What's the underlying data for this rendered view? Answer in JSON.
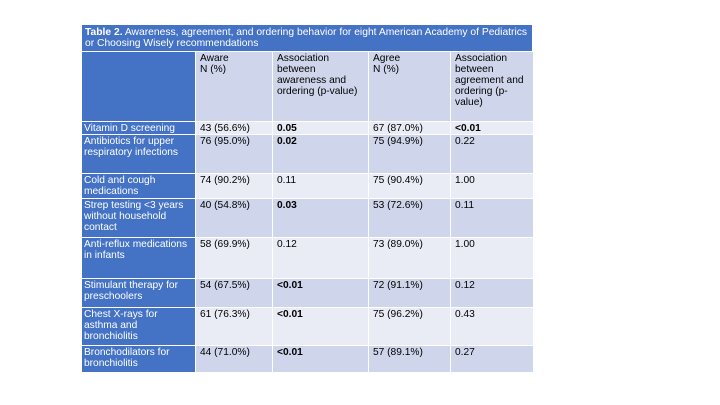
{
  "title": {
    "prefix": "Table 2.",
    "text": " Awareness, agreement, and ordering behavior for eight American Academy of Pediatrics or Choosing Wisely recommendations"
  },
  "headers": [
    "",
    "Aware\nN (%)",
    "Association between awareness and ordering (p-value)",
    "Agree\nN (%)",
    "Association between agreement and ordering (p-value)"
  ],
  "rows": [
    {
      "label": "Vitamin D screening",
      "aware": "43 (56.6%)",
      "p_aware": "0.05",
      "p_aware_bold": true,
      "agree": "67 (87.0%)",
      "p_agree": "<0.01",
      "p_agree_bold": true
    },
    {
      "label": "Antibiotics for upper respiratory infections",
      "aware": "76 (95.0%)",
      "p_aware": "0.02",
      "p_aware_bold": true,
      "agree": "75 (94.9%)",
      "p_agree": "0.22",
      "p_agree_bold": false
    },
    {
      "label": "Cold and cough medications",
      "aware": "74 (90.2%)",
      "p_aware": "0.11",
      "p_aware_bold": false,
      "agree": "75 (90.4%)",
      "p_agree": "1.00",
      "p_agree_bold": false
    },
    {
      "label": "Strep testing <3 years without household contact",
      "aware": "40 (54.8%)",
      "p_aware": "0.03",
      "p_aware_bold": true,
      "agree": "53 (72.6%)",
      "p_agree": "0.11",
      "p_agree_bold": false
    },
    {
      "label": "Anti-reflux medications in infants",
      "aware": "58 (69.9%)",
      "p_aware": "0.12",
      "p_aware_bold": false,
      "agree": "73 (89.0%)",
      "p_agree": "1.00",
      "p_agree_bold": false
    },
    {
      "label": "Stimulant therapy for preschoolers",
      "aware": "54 (67.5%)",
      "p_aware": "<0.01",
      "p_aware_bold": true,
      "agree": "72 (91.1%)",
      "p_agree": "0.12",
      "p_agree_bold": false
    },
    {
      "label": "Chest X-rays for asthma and bronchiolitis",
      "aware": "61 (76.3%)",
      "p_aware": "<0.01",
      "p_aware_bold": true,
      "agree": "75 (96.2%)",
      "p_agree": "0.43",
      "p_agree_bold": false
    },
    {
      "label": "Bronchodilators for bronchiolitis",
      "aware": "44 (71.0%)",
      "p_aware": "<0.01",
      "p_aware_bold": true,
      "agree": "57 (89.1%)",
      "p_agree": "0.27",
      "p_agree_bold": false
    }
  ]
}
